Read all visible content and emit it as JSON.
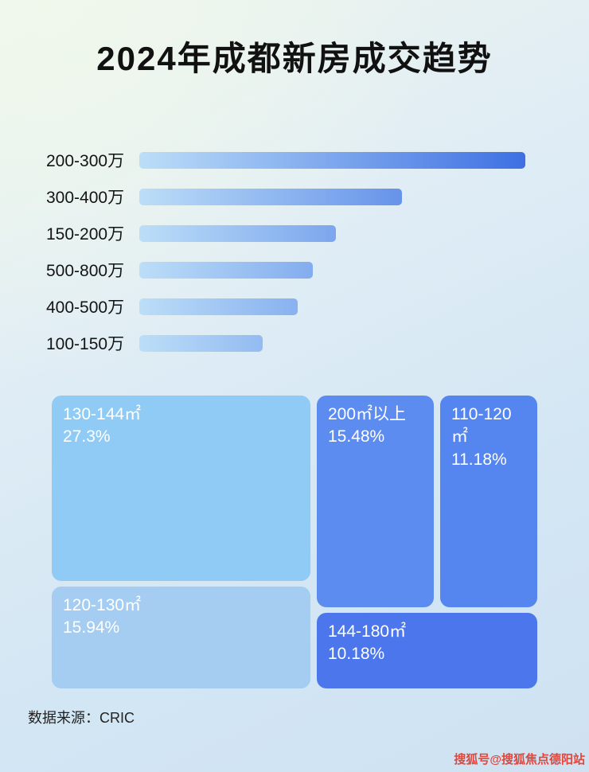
{
  "page": {
    "title": "2024年成都新房成交趋势",
    "source": "数据来源：CRIC",
    "watermark": "搜狐号@搜狐焦点德阳站"
  },
  "colors": {
    "bar_gradient_start": "#bcdef8",
    "bar_gradient_end": "#3e70e3",
    "title_text": "#111111",
    "watermark_text": "#e2473c"
  },
  "chart_data": [
    {
      "type": "bar",
      "title": "2024年成都新房成交趋势",
      "orientation": "horizontal",
      "categories": [
        "200-300万",
        "300-400万",
        "150-200万",
        "500-800万",
        "400-500万",
        "100-150万"
      ],
      "values": [
        100,
        68,
        51,
        45,
        41,
        32
      ],
      "value_unit": "relative bar length, percent of longest bar (bars carry no numeric labels in source)"
    },
    {
      "type": "treemap",
      "items": [
        {
          "label": "130-144㎡",
          "value": 27.3,
          "value_label": "27.3%",
          "color": "#8fcbf5"
        },
        {
          "label": "200㎡以上",
          "value": 15.48,
          "value_label": "15.48%",
          "color": "#5d8cf1"
        },
        {
          "label": "110-120㎡",
          "value": 11.18,
          "value_label": "11.18%",
          "color": "#5585ef"
        },
        {
          "label": "120-130㎡",
          "value": 15.94,
          "value_label": "15.94%",
          "color": "#a5cdf1"
        },
        {
          "label": "144-180㎡",
          "value": 10.18,
          "value_label": "10.18%",
          "color": "#4c77ec"
        }
      ]
    }
  ]
}
